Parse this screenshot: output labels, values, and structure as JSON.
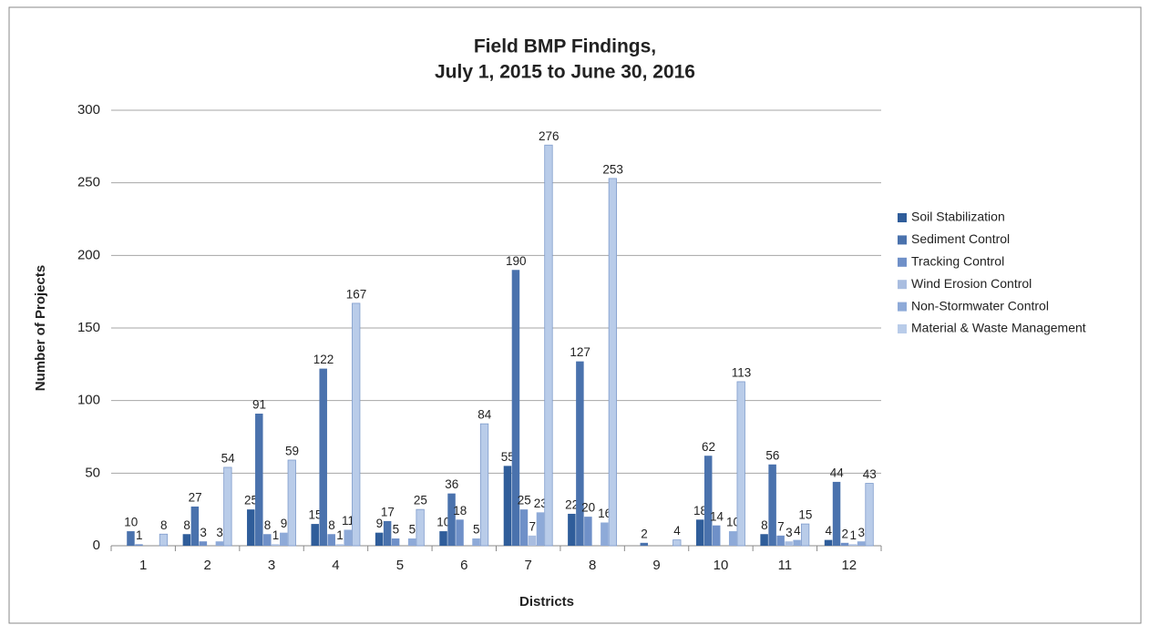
{
  "chart_data": {
    "type": "bar",
    "title": "Field BMP Findings,",
    "subtitle": "July 1, 2015 to June 30, 2016",
    "x_label": "Districts",
    "y_label": "Number of Projects",
    "categories": [
      "1",
      "2",
      "3",
      "4",
      "5",
      "6",
      "7",
      "8",
      "9",
      "10",
      "11",
      "12"
    ],
    "series": [
      {
        "name": "Soil Stabilization",
        "color": "#2f5d9a",
        "values": [
          0,
          8,
          25,
          15,
          9,
          10,
          55,
          22,
          0,
          18,
          8,
          4
        ]
      },
      {
        "name": "Sediment Control",
        "color": "#4a72ad",
        "values": [
          10,
          27,
          91,
          122,
          17,
          36,
          190,
          127,
          2,
          62,
          56,
          44
        ]
      },
      {
        "name": "Tracking Control",
        "color": "#6f90c8",
        "values": [
          1,
          3,
          8,
          8,
          5,
          18,
          25,
          20,
          0,
          14,
          7,
          2
        ]
      },
      {
        "name": "Wind Erosion Control",
        "color": "#a9bde0",
        "values": [
          0,
          0,
          1,
          1,
          0,
          0,
          7,
          0,
          0,
          0,
          3,
          1
        ]
      },
      {
        "name": "Non-Stormwater Control",
        "color": "#8eaad8",
        "values": [
          0,
          3,
          9,
          11,
          5,
          5,
          23,
          16,
          0,
          10,
          4,
          3
        ]
      },
      {
        "name": "Material & Waste Management",
        "color": "#b9cce9",
        "values": [
          8,
          54,
          59,
          167,
          25,
          84,
          276,
          253,
          4,
          113,
          15,
          43
        ]
      }
    ],
    "ylim": [
      0,
      300
    ],
    "yticks": [
      0,
      50,
      100,
      150,
      200,
      250,
      300
    ],
    "grid": true,
    "legend": "right"
  }
}
